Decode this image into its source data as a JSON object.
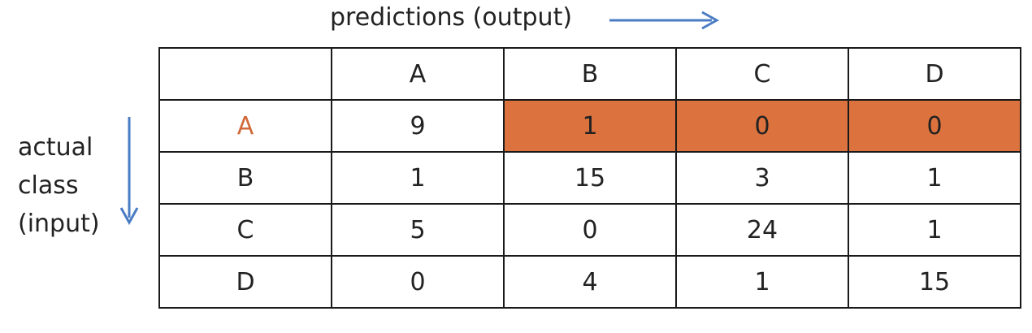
{
  "header_label": "predictions (output)",
  "side_label": {
    "lines": [
      "actual",
      "class",
      "(input)"
    ]
  },
  "colors": {
    "arrow": "#4a7cc4",
    "highlight": "#dc733e",
    "row_a_label": "#d2693a",
    "border": "#1a1a1a"
  },
  "matrix": {
    "column_headers": [
      "A",
      "B",
      "C",
      "D"
    ],
    "rows": [
      {
        "label": "A",
        "values": [
          "9",
          "1",
          "0",
          "0"
        ]
      },
      {
        "label": "B",
        "values": [
          "1",
          "15",
          "3",
          "1"
        ]
      },
      {
        "label": "C",
        "values": [
          "5",
          "0",
          "24",
          "1"
        ]
      },
      {
        "label": "D",
        "values": [
          "0",
          "4",
          "1",
          "15"
        ]
      }
    ],
    "highlighted_row": "A",
    "highlighted_columns": [
      "B",
      "C",
      "D"
    ]
  }
}
